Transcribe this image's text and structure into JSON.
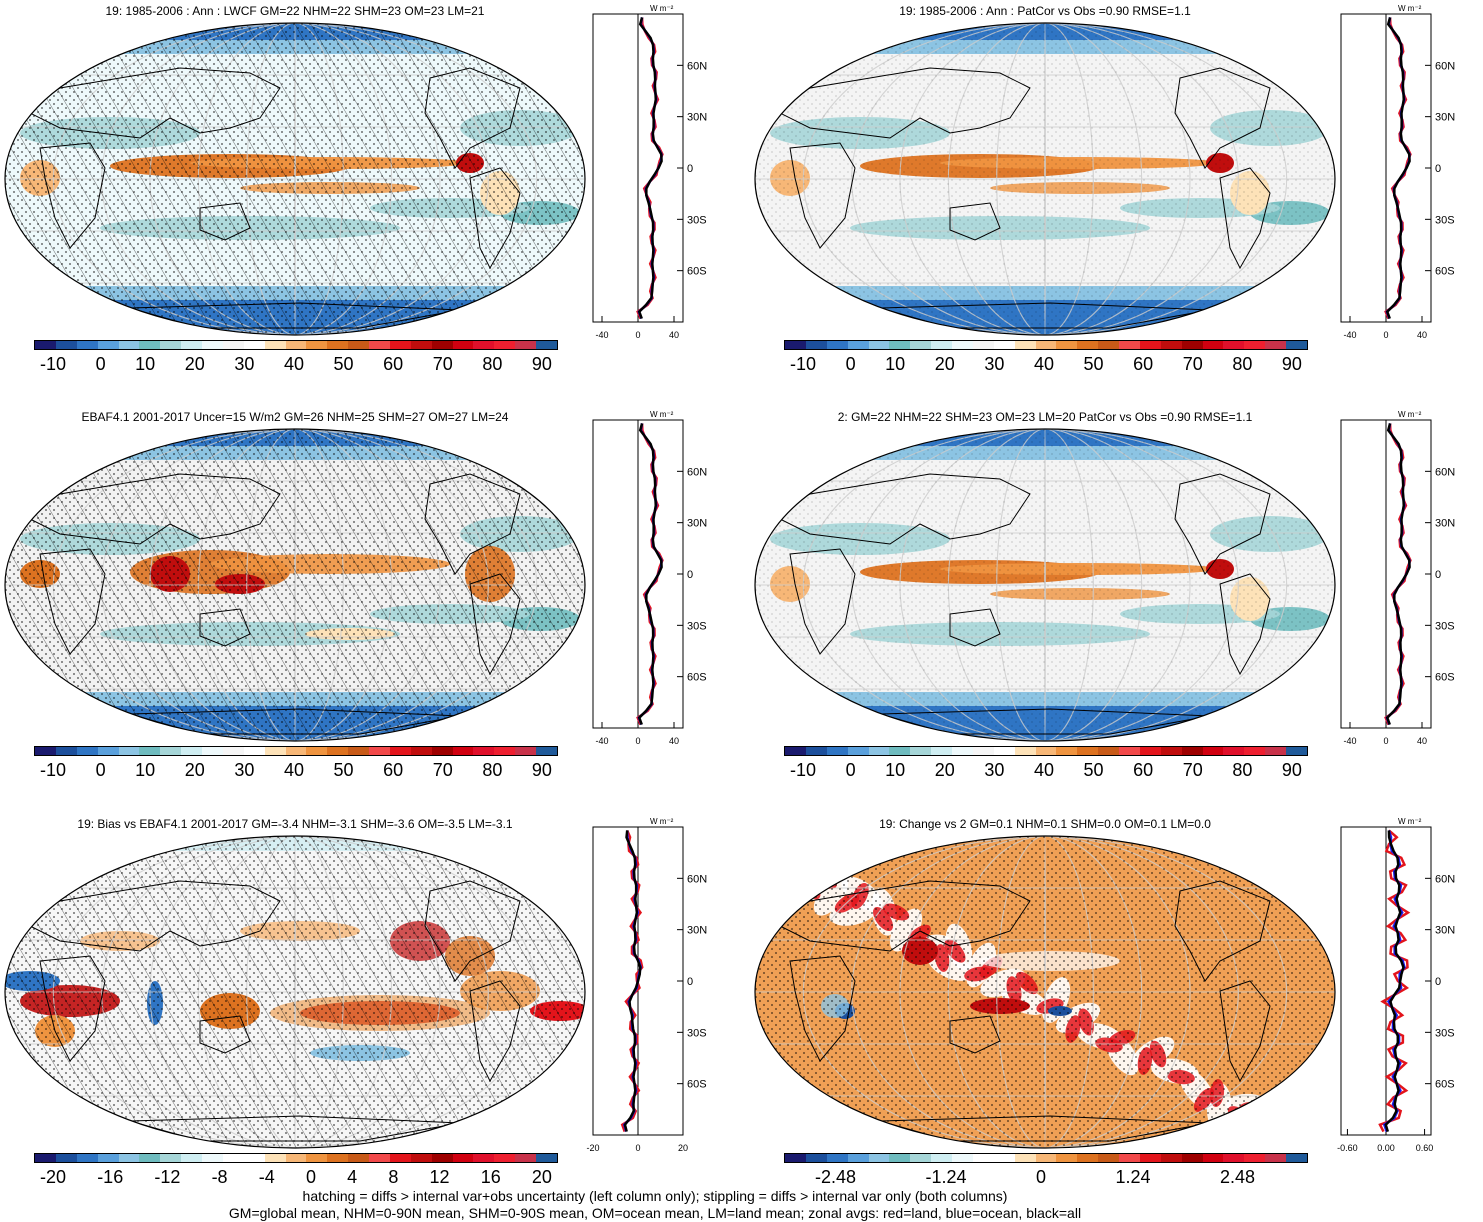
{
  "panels": [
    {
      "id": "p1",
      "title": "19: 1985-2006 : Ann : LWCF GM=22 NHM=22 SHM=23 OM=23 LM=21",
      "type": "lwcf",
      "cbar": "lwcf",
      "hatch": true,
      "stipple": true,
      "zonal": {
        "xticks": [
          "-40",
          "0",
          "40"
        ],
        "xmin": -50,
        "xmax": 50,
        "unit": "W m⁻²"
      }
    },
    {
      "id": "p2",
      "title": "19: 1985-2006 : Ann : PatCor vs Obs =0.90 RMSE=1.1",
      "type": "lwcf2",
      "cbar": "lwcf",
      "hatch": false,
      "stipple": true,
      "zonal": {
        "xticks": [
          "-40",
          "0",
          "40"
        ],
        "xmin": -50,
        "xmax": 50,
        "unit": "W m⁻²"
      }
    },
    {
      "id": "p3",
      "title": "EBAF4.1 2001-2017 Uncer=15 W/m2 GM=26 NHM=25 SHM=27 OM=27 LM=24",
      "type": "ebaf",
      "cbar": "lwcf",
      "hatch": true,
      "stipple": true,
      "zonal": {
        "xticks": [
          "-40",
          "0",
          "40"
        ],
        "xmin": -50,
        "xmax": 50,
        "unit": "W m⁻²"
      }
    },
    {
      "id": "p4",
      "title": "2: GM=22 NHM=22 SHM=23 OM=23 LM=20 PatCor vs Obs =0.90 RMSE=1.1",
      "type": "lwcf2",
      "cbar": "lwcf",
      "hatch": false,
      "stipple": true,
      "zonal": {
        "xticks": [
          "-40",
          "0",
          "40"
        ],
        "xmin": -50,
        "xmax": 50,
        "unit": "W m⁻²"
      }
    },
    {
      "id": "p5",
      "title": "19: Bias vs EBAF4.1 2001-2017 GM=-3.4 NHM=-3.1 SHM=-3.6 OM=-3.5 LM=-3.1",
      "type": "bias",
      "cbar": "bias",
      "hatch": true,
      "stipple": true,
      "zonal": {
        "xticks": [
          "-20",
          "0",
          "20"
        ],
        "xmin": -20,
        "xmax": 20,
        "unit": "W m⁻²"
      }
    },
    {
      "id": "p6",
      "title": "19: Change vs 2 GM=0.1 NHM=0.1 SHM=0.0 OM=0.1 LM=0.0",
      "type": "change",
      "cbar": "change",
      "hatch": false,
      "stipple": true,
      "zonal": {
        "xticks": [
          "-0.60",
          "0.00",
          "0.60"
        ],
        "xmin": -0.7,
        "xmax": 0.7,
        "unit": "W m⁻²"
      }
    }
  ],
  "lat_labels": [
    "60N",
    "30N",
    "0",
    "30S",
    "60S"
  ],
  "colorbars": {
    "lwcf": {
      "labels": [
        "-10",
        "0",
        "10",
        "20",
        "30",
        "40",
        "50",
        "60",
        "70",
        "80",
        "90"
      ]
    },
    "bias": {
      "labels": [
        "-20",
        "-16",
        "-12",
        "-8",
        "-4",
        "0",
        "4",
        "8",
        "12",
        "16",
        "20"
      ]
    },
    "change": {
      "labels": [
        "-2.48",
        "-1.24",
        "0",
        "1.24",
        "2.48"
      ]
    }
  },
  "palette": [
    "#1a1a6e",
    "#1c4f9c",
    "#2f75c4",
    "#5aa0dc",
    "#8cc4e3",
    "#6fbcbf",
    "#a6d6d8",
    "#cfeef2",
    "#eef9fb",
    "#f6f6f6",
    "#ffffff",
    "#fde2b8",
    "#f7b777",
    "#ef9440",
    "#dd7220",
    "#c85a18",
    "#f2494a",
    "#e3141b",
    "#c00d0d",
    "#9e0000",
    "#d10010",
    "#e0102b",
    "#ee1f30",
    "#c8324a",
    "#1f5a9a"
  ],
  "footer": [
    "hatching = diffs > internal var+obs uncertainty (left column only); stippling = diffs > internal var only (both columns)",
    "GM=global mean, NHM=0-90N mean, SHM=0-90S mean, OM=ocean mean, LM=land mean; zonal avgs: red=land, blue=ocean, black=all"
  ]
}
